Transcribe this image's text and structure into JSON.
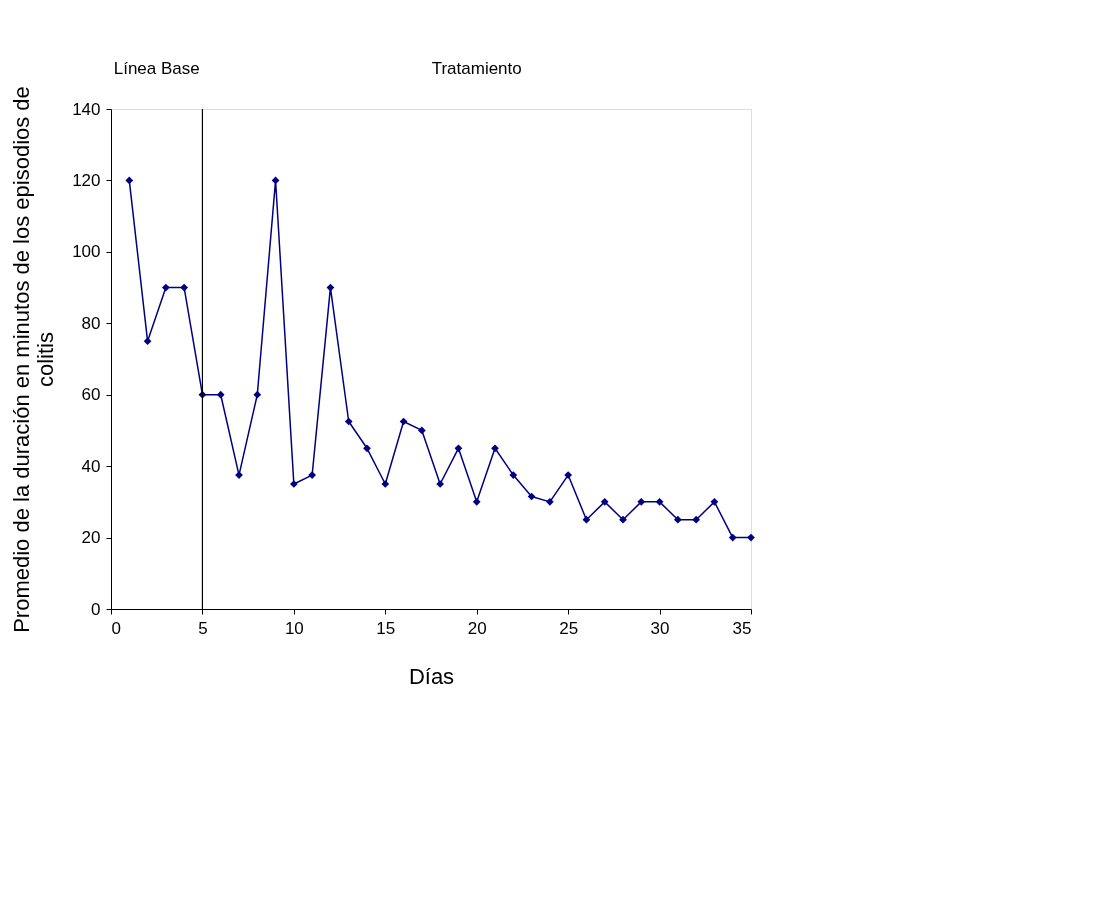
{
  "chart_data": {
    "type": "line",
    "xlabel": "Días",
    "ylabel": "Promedio de la duración en minutos de los episodios de colitis",
    "x": [
      1,
      2,
      3,
      4,
      5,
      6,
      7,
      8,
      9,
      10,
      11,
      12,
      13,
      14,
      15,
      16,
      17,
      18,
      19,
      20,
      21,
      22,
      23,
      24,
      25,
      26,
      27,
      28,
      29,
      30,
      31,
      32,
      33,
      34,
      35
    ],
    "series": [
      {
        "color": "#000080",
        "values": [
          120,
          75,
          90,
          90,
          60,
          60,
          37.5,
          60,
          120,
          35,
          37.5,
          90,
          52.5,
          45,
          35,
          52.5,
          50,
          35,
          45,
          30,
          45,
          37.5,
          31.5,
          30,
          37.5,
          25,
          30,
          25,
          30,
          30,
          25,
          25,
          30,
          20,
          20
        ]
      }
    ],
    "xlim": [
      0,
      35
    ],
    "xticks": [
      0,
      5,
      10,
      15,
      20,
      25,
      30,
      35
    ],
    "ylim": [
      0,
      140
    ],
    "yticks": [
      0,
      20,
      40,
      60,
      80,
      100,
      120,
      140
    ],
    "ref_lines": [
      {
        "axis": "x",
        "value": 5,
        "color": "#000000"
      }
    ],
    "annotations": [
      "Línea Base",
      "Tratamiento"
    ],
    "marker": "diamond",
    "line_style": "solid",
    "grid": false
  }
}
